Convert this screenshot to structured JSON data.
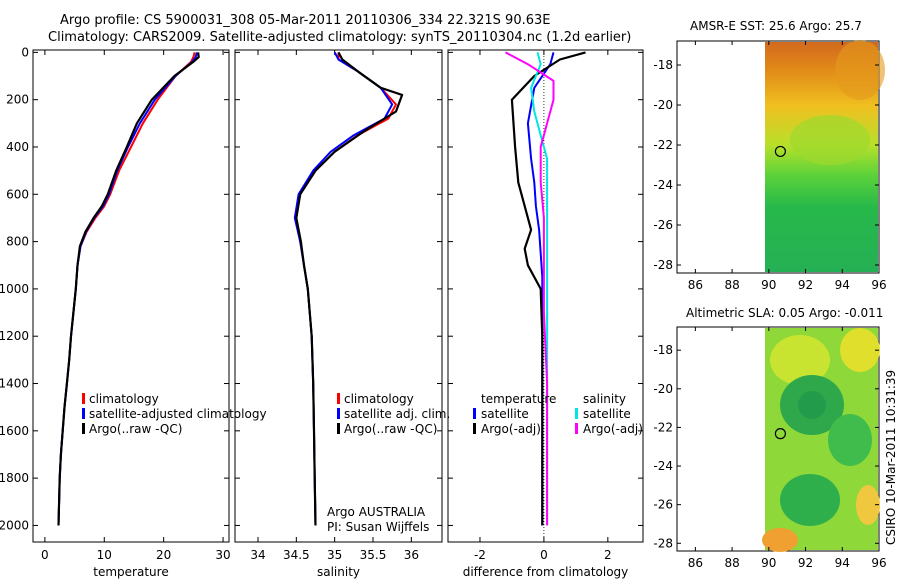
{
  "header": {
    "line1": "Argo profile: CS 5900031_308 05-Mar-2011 20110306_334 22.321S 90.63E",
    "line2": "Climatology: CARS2009. Satellite-adjusted climatology: synTS_20110304.nc (1.2d earlier)"
  },
  "chart_data": [
    {
      "type": "line",
      "panel": "temperature",
      "xlabel": "temperature",
      "ylabel": "",
      "xlim": [
        -2,
        31
      ],
      "ylim": [
        2070,
        -10
      ],
      "xticks": [
        0,
        10,
        20,
        30
      ],
      "yticks": [
        0,
        200,
        400,
        600,
        800,
        1000,
        1200,
        1400,
        1600,
        1800,
        2000
      ],
      "legend": [
        "climatology",
        "satellite-adjusted climatology",
        "Argo(..raw -QC)"
      ],
      "series": [
        {
          "name": "climatology",
          "color": "#ff0000",
          "x": [
            25.2,
            25.0,
            24.6,
            22.0,
            19.0,
            16.5,
            14.5,
            12.5,
            11.0,
            10.0,
            8.5,
            7.0,
            6.0,
            5.5,
            5.2,
            4.8,
            4.4,
            4.1,
            3.7,
            3.3,
            3.0,
            2.7,
            2.5,
            2.3
          ],
          "y": [
            0,
            20,
            40,
            100,
            200,
            300,
            400,
            500,
            600,
            650,
            700,
            760,
            820,
            900,
            1000,
            1100,
            1200,
            1300,
            1400,
            1500,
            1600,
            1700,
            1800,
            2000
          ]
        },
        {
          "name": "satellite-adjusted",
          "color": "#0000ff",
          "x": [
            25.6,
            25.4,
            24.8,
            22.0,
            18.5,
            16.0,
            14.0,
            12.2,
            10.8,
            9.8,
            8.3,
            6.9,
            6.0,
            5.5,
            5.2,
            4.8,
            4.4,
            4.1,
            3.7,
            3.3,
            3.0,
            2.7,
            2.5,
            2.3
          ],
          "y": [
            0,
            20,
            40,
            100,
            200,
            300,
            400,
            500,
            600,
            650,
            700,
            760,
            820,
            900,
            1000,
            1100,
            1200,
            1300,
            1400,
            1500,
            1600,
            1700,
            1800,
            2000
          ]
        },
        {
          "name": "Argo",
          "color": "#000000",
          "x": [
            25.8,
            25.9,
            25.0,
            21.8,
            18.0,
            15.5,
            13.8,
            12.0,
            10.6,
            9.6,
            8.2,
            6.8,
            5.9,
            5.5,
            5.2,
            4.8,
            4.4,
            4.1,
            3.7,
            3.3,
            3.0,
            2.7,
            2.5,
            2.3
          ],
          "y": [
            0,
            20,
            40,
            100,
            200,
            300,
            400,
            500,
            600,
            650,
            700,
            760,
            820,
            900,
            1000,
            1100,
            1200,
            1300,
            1400,
            1500,
            1600,
            1700,
            1800,
            2000
          ]
        }
      ]
    },
    {
      "type": "line",
      "panel": "salinity",
      "xlabel": "salinity",
      "xlim": [
        33.7,
        36.4
      ],
      "ylim": [
        2070,
        -10
      ],
      "xticks": [
        34,
        34.5,
        35,
        35.5,
        36
      ],
      "legend": [
        "climatology",
        "satellite adj. clim.",
        "Argo(..raw -QC)"
      ],
      "annotation": [
        "Argo AUSTRALIA",
        "PI: Susan Wijffels"
      ],
      "series": [
        {
          "name": "climatology",
          "color": "#ff0000",
          "x": [
            35.05,
            35.05,
            35.3,
            35.6,
            35.8,
            35.7,
            35.3,
            35.0,
            34.75,
            34.55,
            34.5,
            34.55,
            34.6,
            34.65,
            34.7,
            34.72,
            34.73,
            34.74,
            34.75
          ],
          "y": [
            0,
            30,
            80,
            150,
            220,
            280,
            350,
            420,
            500,
            600,
            700,
            800,
            900,
            1000,
            1200,
            1400,
            1600,
            1800,
            2000
          ]
        },
        {
          "name": "satellite-adjusted",
          "color": "#0000ff",
          "x": [
            35.0,
            35.05,
            35.3,
            35.6,
            35.75,
            35.65,
            35.25,
            34.95,
            34.72,
            34.53,
            34.48,
            34.55,
            34.6,
            34.65,
            34.7,
            34.72,
            34.73,
            34.74,
            34.75
          ],
          "y": [
            0,
            30,
            80,
            150,
            220,
            280,
            350,
            420,
            500,
            600,
            700,
            800,
            900,
            1000,
            1200,
            1400,
            1600,
            1800,
            2000
          ]
        },
        {
          "name": "Argo",
          "color": "#000000",
          "x": [
            35.05,
            35.1,
            35.3,
            35.6,
            35.88,
            35.8,
            35.4,
            35.0,
            34.75,
            34.55,
            34.5,
            34.56,
            34.6,
            34.65,
            34.7,
            34.72,
            34.73,
            34.74,
            34.75
          ],
          "y": [
            0,
            30,
            80,
            150,
            180,
            250,
            330,
            420,
            500,
            600,
            700,
            800,
            900,
            1000,
            1200,
            1400,
            1600,
            1800,
            2000
          ]
        }
      ]
    },
    {
      "type": "line",
      "panel": "difference",
      "xlabel": "difference from climatology",
      "xlim": [
        -3,
        3.1
      ],
      "ylim": [
        2070,
        -10
      ],
      "xticks": [
        -2,
        0,
        2
      ],
      "legend": [
        "temperature",
        "satellite",
        "Argo(-adj)",
        "salinity",
        "satellite",
        "Argo(-adj)"
      ],
      "series": [
        {
          "name": "temperature satellite",
          "color": "#0000ff",
          "x": [
            0.3,
            0.2,
            -0.3,
            -0.5,
            -0.4,
            -0.3,
            -0.25,
            -0.15,
            -0.1,
            -0.05,
            -0.05,
            -0.05,
            -0.05,
            -0.05,
            -0.05
          ],
          "y": [
            0,
            50,
            150,
            300,
            450,
            550,
            650,
            750,
            850,
            950,
            1100,
            1300,
            1500,
            1700,
            2000
          ]
        },
        {
          "name": "temperature Argo",
          "color": "#000000",
          "x": [
            1.3,
            0.5,
            -0.3,
            -1.0,
            -0.9,
            -0.8,
            -0.5,
            -0.4,
            -0.6,
            -0.5,
            -0.1,
            -0.05,
            -0.05,
            -0.05,
            -0.05
          ],
          "y": [
            0,
            30,
            100,
            200,
            400,
            550,
            700,
            750,
            830,
            900,
            1000,
            1200,
            1500,
            1800,
            2000
          ]
        },
        {
          "name": "salinity satellite",
          "color": "#00e5e5",
          "x": [
            -0.2,
            -0.1,
            -0.4,
            -0.3,
            -0.1,
            0.1,
            0.1,
            0.1,
            0.1,
            0.1,
            0.1,
            0.1,
            0.1
          ],
          "y": [
            0,
            50,
            150,
            250,
            350,
            450,
            600,
            800,
            1000,
            1300,
            1500,
            1800,
            2000
          ]
        },
        {
          "name": "salinity Argo",
          "color": "#ff00ff",
          "x": [
            -1.2,
            -0.5,
            0.3,
            0.3,
            0.1,
            -0.1,
            -0.1,
            0.0,
            0.0,
            0.0,
            0.1,
            0.1,
            0.1
          ],
          "y": [
            0,
            50,
            120,
            200,
            300,
            400,
            550,
            700,
            900,
            1100,
            1400,
            1700,
            2000
          ]
        }
      ]
    },
    {
      "type": "heatmap",
      "panel": "sst-map",
      "title": "AMSR-E SST: 25.6 Argo: 25.7",
      "xlim": [
        85,
        96
      ],
      "ylim": [
        -28.4,
        -16.8
      ],
      "xticks": [
        86,
        88,
        90,
        92,
        94,
        96
      ],
      "yticks": [
        -18,
        -20,
        -22,
        -24,
        -26,
        -28
      ],
      "marker": {
        "lon": 90.63,
        "lat": -22.321
      }
    },
    {
      "type": "heatmap",
      "panel": "sla-map",
      "title": "Altimetric SLA: 0.05 Argo: -0.011",
      "xlim": [
        85,
        96
      ],
      "ylim": [
        -28.4,
        -16.8
      ],
      "xticks": [
        86,
        88,
        90,
        92,
        94,
        96
      ],
      "yticks": [
        -18,
        -20,
        -22,
        -24,
        -26,
        -28
      ],
      "marker": {
        "lon": 90.63,
        "lat": -22.321
      }
    }
  ],
  "footer_stamp": "CSIRO 10-Mar-2011 10:31:39",
  "colors": {
    "red": "#ff0000",
    "blue": "#0000ff",
    "black": "#000000",
    "cyan": "#00e5e5",
    "magenta": "#ff00ff"
  }
}
